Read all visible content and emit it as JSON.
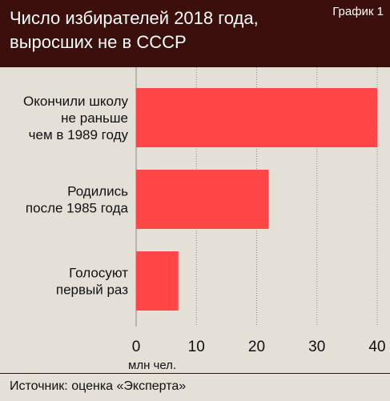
{
  "header": {
    "title_line1": "Число избирателей 2018 года,",
    "title_line2": "выросших не в СССР",
    "badge": "График 1"
  },
  "footer": {
    "source": "Источник: оценка «Эксперта»"
  },
  "colors": {
    "header_bg": "#3a0f0c",
    "plot_bg": "#e4e0d8",
    "bar": "#ff4747",
    "grid": "#888888"
  },
  "chart_data": {
    "type": "bar",
    "orientation": "horizontal",
    "categories": [
      [
        "Окончили школу",
        "не раньше",
        "чем в 1989 году"
      ],
      [
        "Родились",
        "после 1985 года"
      ],
      [
        "Голосуют",
        "первый раз"
      ]
    ],
    "values": [
      40,
      22,
      7
    ],
    "xlim": [
      0,
      40
    ],
    "xticks": [
      0,
      10,
      20,
      30,
      40
    ],
    "xlabel": "млн чел.",
    "grid": "vertical dashed"
  }
}
